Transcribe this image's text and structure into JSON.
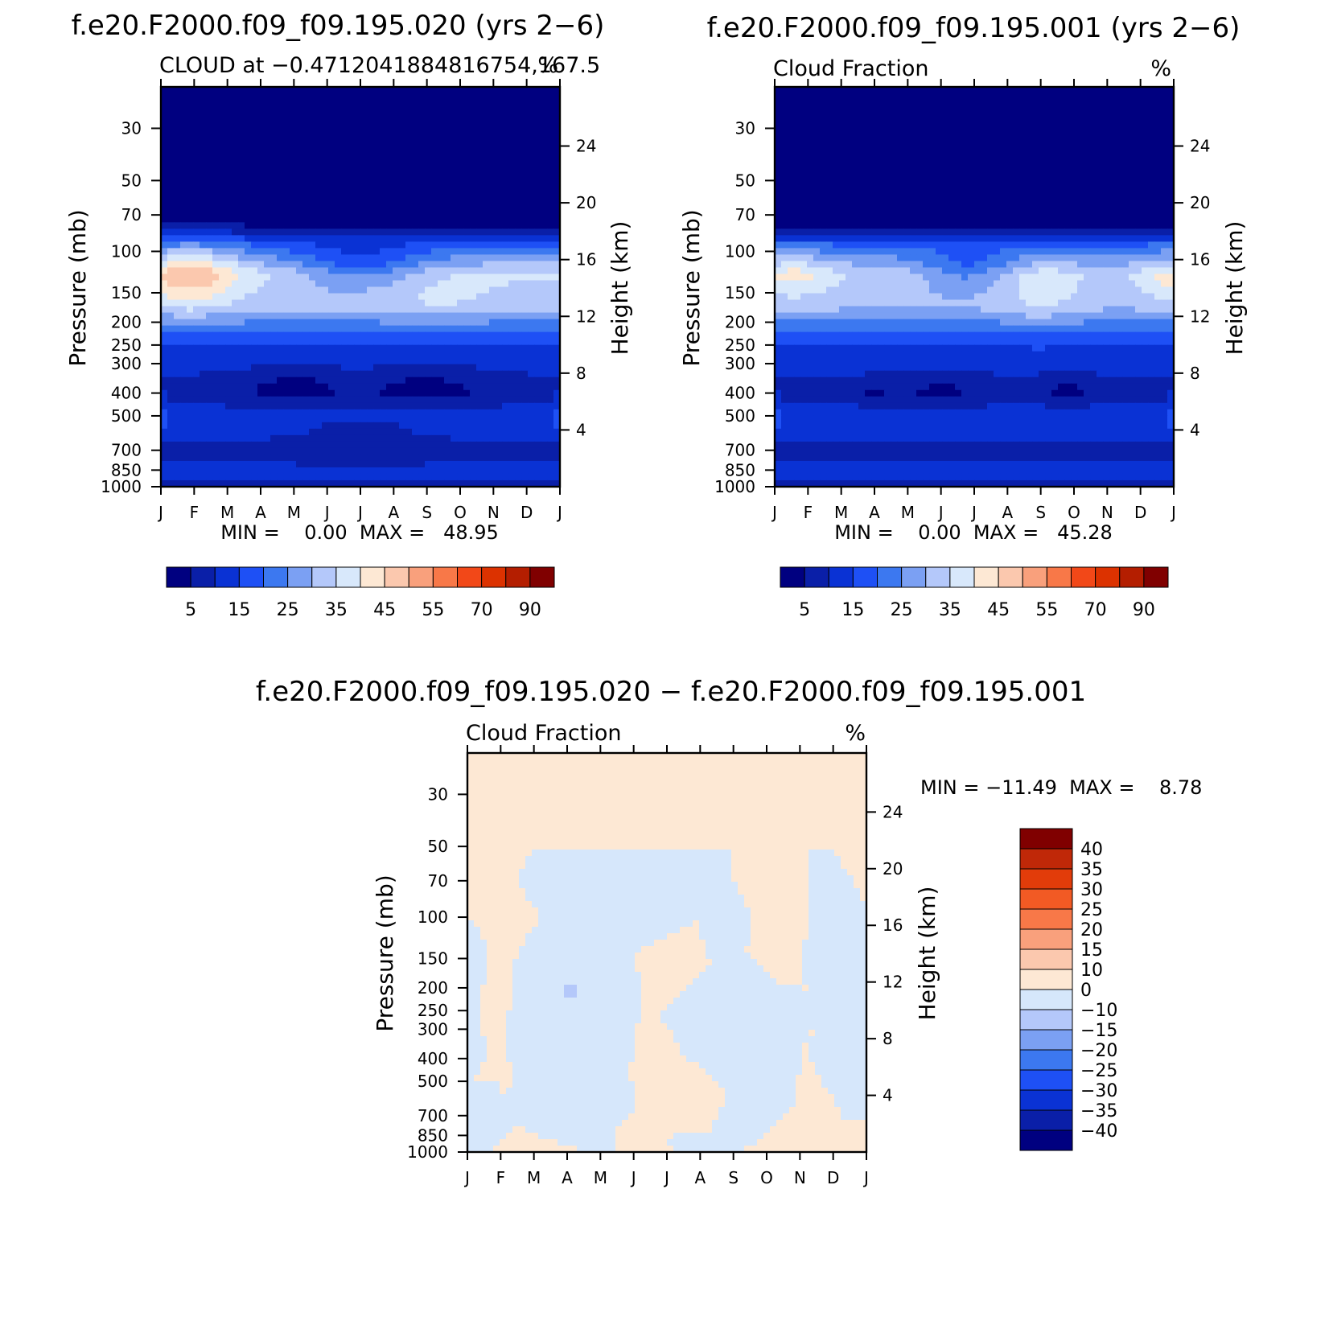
{
  "figure": {
    "colors": {
      "cloud_scale": [
        "#000080",
        "#0a1fa8",
        "#0a32d4",
        "#1e50f5",
        "#3c78f0",
        "#7ba0f3",
        "#b4c8fa",
        "#d8e8fb",
        "#fde8d4",
        "#fbc8ae",
        "#f9a07c",
        "#f87848",
        "#f24818",
        "#dc3200",
        "#b41e00",
        "#800000"
      ],
      "diff_scale": [
        "#000080",
        "#0a1fa8",
        "#0a32d4",
        "#1e50f5",
        "#3c78f0",
        "#7ba0f3",
        "#b4c8fa",
        "#d6e7fb",
        "#fde8d4",
        "#fbc8ae",
        "#f9a07c",
        "#f87848",
        "#f25a24",
        "#e23c0a",
        "#c02808",
        "#800000"
      ]
    }
  },
  "chart_data": [
    {
      "type": "heatmap",
      "id": "panel_left",
      "title": "f.e20.F2000.f09_f09.195.020 (yrs 2−6)",
      "subtitle_left": "CLOUD at −0.4712041884816754,167.5",
      "subtitle_right": "%",
      "xlabel": "",
      "ylabel": "Pressure (mb)",
      "ylabel_right": "Height (km)",
      "x_tick_labels": [
        "J",
        "F",
        "M",
        "A",
        "M",
        "J",
        "J",
        "A",
        "S",
        "O",
        "N",
        "D",
        "J"
      ],
      "y_tick_labels": [
        "30",
        "50",
        "70",
        "100",
        "150",
        "200",
        "250",
        "300",
        "400",
        "500",
        "700",
        "850",
        "1000"
      ],
      "y_tick_values": [
        30,
        50,
        70,
        100,
        150,
        200,
        250,
        300,
        400,
        500,
        700,
        850,
        1000
      ],
      "ylim": [
        20,
        1000
      ],
      "y2_tick_labels": [
        "24",
        "20",
        "16",
        "12",
        "8",
        "4"
      ],
      "y2_tick_values": [
        24,
        20,
        16,
        12,
        8,
        4
      ],
      "minmax_text": "MIN =    0.00  MAX =   48.95",
      "colorbar_labels": [
        "5",
        "15",
        "25",
        "35",
        "45",
        "55",
        "70",
        "90"
      ],
      "levels": [
        5,
        10,
        15,
        20,
        25,
        30,
        35,
        40,
        45,
        50,
        55,
        60,
        70,
        80,
        90
      ],
      "profile": [
        {
          "p": 20,
          "v": 0
        },
        {
          "p": 70,
          "v": 0
        },
        {
          "p": 80,
          "v": 6
        },
        {
          "p": 95,
          "v": 20
        },
        {
          "p": 125,
          "v": 36
        },
        {
          "p": 175,
          "v": 31
        },
        {
          "p": 220,
          "v": 20
        },
        {
          "p": 280,
          "v": 12
        },
        {
          "p": 400,
          "v": 8
        },
        {
          "p": 500,
          "v": 12
        },
        {
          "p": 700,
          "v": 9
        },
        {
          "p": 900,
          "v": 11
        },
        {
          "p": 1000,
          "v": 4
        }
      ],
      "anomalies": [
        {
          "m": 0.9,
          "p": 125,
          "sm": 1.4,
          "sp": 0.32,
          "a": 14
        },
        {
          "m": 4.0,
          "p": 380,
          "sm": 1.5,
          "sp": 0.18,
          "a": -6
        },
        {
          "m": 8.0,
          "p": 380,
          "sm": 1.6,
          "sp": 0.18,
          "a": -6
        },
        {
          "m": 6.0,
          "p": 115,
          "sm": 2.0,
          "sp": 0.25,
          "a": -12
        },
        {
          "m": 8.2,
          "p": 160,
          "sm": 1.8,
          "sp": 0.2,
          "a": 4
        },
        {
          "m": 6.0,
          "p": 620,
          "sm": 1.3,
          "sp": 0.22,
          "a": -3
        }
      ]
    },
    {
      "type": "heatmap",
      "id": "panel_right",
      "title": "f.e20.F2000.f09_f09.195.001 (yrs 2−6)",
      "subtitle_left": "Cloud Fraction",
      "subtitle_right": "%",
      "xlabel": "",
      "ylabel": "Pressure (mb)",
      "ylabel_right": "Height (km)",
      "x_tick_labels": [
        "J",
        "F",
        "M",
        "A",
        "M",
        "J",
        "J",
        "A",
        "S",
        "O",
        "N",
        "D",
        "J"
      ],
      "y_tick_labels": [
        "30",
        "50",
        "70",
        "100",
        "150",
        "200",
        "250",
        "300",
        "400",
        "500",
        "700",
        "850",
        "1000"
      ],
      "y_tick_values": [
        30,
        50,
        70,
        100,
        150,
        200,
        250,
        300,
        400,
        500,
        700,
        850,
        1000
      ],
      "ylim": [
        20,
        1000
      ],
      "y2_tick_labels": [
        "24",
        "20",
        "16",
        "12",
        "8",
        "4"
      ],
      "y2_tick_values": [
        24,
        20,
        16,
        12,
        8,
        4
      ],
      "minmax_text": "MIN =    0.00  MAX =   45.28",
      "colorbar_labels": [
        "5",
        "15",
        "25",
        "35",
        "45",
        "55",
        "70",
        "90"
      ],
      "levels": [
        5,
        10,
        15,
        20,
        25,
        30,
        35,
        40,
        45,
        50,
        55,
        60,
        70,
        80,
        90
      ],
      "profile": [
        {
          "p": 20,
          "v": 0
        },
        {
          "p": 70,
          "v": 0
        },
        {
          "p": 80,
          "v": 6
        },
        {
          "p": 95,
          "v": 20
        },
        {
          "p": 125,
          "v": 34
        },
        {
          "p": 175,
          "v": 30
        },
        {
          "p": 220,
          "v": 20
        },
        {
          "p": 280,
          "v": 12
        },
        {
          "p": 400,
          "v": 8
        },
        {
          "p": 500,
          "v": 12
        },
        {
          "p": 700,
          "v": 9
        },
        {
          "p": 900,
          "v": 11
        },
        {
          "p": 1000,
          "v": 4
        }
      ],
      "anomalies": [
        {
          "m": 0.6,
          "p": 125,
          "sm": 1.2,
          "sp": 0.25,
          "a": 8
        },
        {
          "m": 8.0,
          "p": 150,
          "sm": 1.2,
          "sp": 0.3,
          "a": 6
        },
        {
          "m": 11.8,
          "p": 130,
          "sm": 0.8,
          "sp": 0.25,
          "a": 8
        },
        {
          "m": 5.0,
          "p": 400,
          "sm": 1.0,
          "sp": 0.15,
          "a": -5
        },
        {
          "m": 8.8,
          "p": 390,
          "sm": 0.6,
          "sp": 0.12,
          "a": -6
        },
        {
          "m": 3.0,
          "p": 400,
          "sm": 0.4,
          "sp": 0.1,
          "a": -5
        },
        {
          "m": 5.8,
          "p": 120,
          "sm": 1.4,
          "sp": 0.2,
          "a": -10
        }
      ]
    },
    {
      "type": "heatmap",
      "id": "panel_diff",
      "title": "f.e20.F2000.f09_f09.195.020 − f.e20.F2000.f09_f09.195.001",
      "subtitle_left": "Cloud Fraction",
      "subtitle_right": "%",
      "xlabel": "",
      "ylabel": "Pressure (mb)",
      "ylabel_right": "Height (km)",
      "x_tick_labels": [
        "J",
        "F",
        "M",
        "A",
        "M",
        "J",
        "J",
        "A",
        "S",
        "O",
        "N",
        "D",
        "J"
      ],
      "y_tick_labels": [
        "30",
        "50",
        "70",
        "100",
        "150",
        "200",
        "250",
        "300",
        "400",
        "500",
        "700",
        "850",
        "1000"
      ],
      "y_tick_values": [
        30,
        50,
        70,
        100,
        150,
        200,
        250,
        300,
        400,
        500,
        700,
        850,
        1000
      ],
      "ylim": [
        20,
        1000
      ],
      "y2_tick_labels": [
        "24",
        "20",
        "16",
        "12",
        "8",
        "4"
      ],
      "y2_tick_values": [
        24,
        20,
        16,
        12,
        8,
        4
      ],
      "minmax_text": "MIN = −11.49  MAX =    8.78",
      "colorbar_labels": [
        "40",
        "35",
        "30",
        "25",
        "20",
        "15",
        "10",
        "0",
        "−10",
        "−15",
        "−20",
        "−25",
        "−30",
        "−35",
        "−40"
      ],
      "levels": [
        -40,
        -35,
        -30,
        -25,
        -20,
        -15,
        -10,
        0,
        10,
        15,
        20,
        25,
        30,
        35,
        40
      ],
      "base_value": 3,
      "neg_value": -3,
      "neg_region": [
        {
          "m": 2.0,
          "p": 50
        },
        {
          "m": 8.0,
          "p": 50
        },
        {
          "m": 8.0,
          "p": 70
        },
        {
          "m": 8.6,
          "p": 100
        },
        {
          "m": 8.4,
          "p": 140
        },
        {
          "m": 9.3,
          "p": 190
        },
        {
          "m": 10.6,
          "p": 210
        },
        {
          "m": 10.6,
          "p": 250
        },
        {
          "m": 10.2,
          "p": 330
        },
        {
          "m": 10.0,
          "p": 450
        },
        {
          "m": 9.8,
          "p": 620
        },
        {
          "m": 9.2,
          "p": 800
        },
        {
          "m": 8.8,
          "p": 900
        },
        {
          "m": 8.0,
          "p": 1000
        },
        {
          "m": 4.5,
          "p": 1000
        },
        {
          "m": 4.4,
          "p": 820
        },
        {
          "m": 5.0,
          "p": 650
        },
        {
          "m": 4.9,
          "p": 450
        },
        {
          "m": 5.2,
          "p": 250
        },
        {
          "m": 5.1,
          "p": 140
        },
        {
          "m": 6.9,
          "p": 105
        },
        {
          "m": 7.3,
          "p": 160
        },
        {
          "m": 5.8,
          "p": 260
        },
        {
          "m": 6.5,
          "p": 380
        },
        {
          "m": 7.8,
          "p": 560
        },
        {
          "m": 7.3,
          "p": 800
        },
        {
          "m": 5.8,
          "p": 870
        },
        {
          "m": 6.2,
          "p": 980
        },
        {
          "m": 3.3,
          "p": 980
        },
        {
          "m": 2.0,
          "p": 830
        },
        {
          "m": 1.0,
          "p": 700
        },
        {
          "m": 1.3,
          "p": 500
        },
        {
          "m": 1.2,
          "p": 300
        },
        {
          "m": 1.4,
          "p": 150
        },
        {
          "m": 2.2,
          "p": 100
        },
        {
          "m": 1.5,
          "p": 70
        }
      ],
      "neg_region_left": [
        {
          "m": 0,
          "p": 95
        },
        {
          "m": 0.7,
          "p": 140
        },
        {
          "m": 0.3,
          "p": 260
        },
        {
          "m": 0.6,
          "p": 380
        },
        {
          "m": 0.2,
          "p": 480
        },
        {
          "m": 1.0,
          "p": 520
        },
        {
          "m": 1.4,
          "p": 750
        },
        {
          "m": 0.8,
          "p": 1000
        },
        {
          "m": 0,
          "p": 1000
        }
      ],
      "neg_region_right": [
        {
          "m": 10.2,
          "p": 50
        },
        {
          "m": 11.0,
          "p": 50
        },
        {
          "m": 12,
          "p": 90
        },
        {
          "m": 12,
          "p": 700
        },
        {
          "m": 11.4,
          "p": 760
        },
        {
          "m": 11.0,
          "p": 600
        },
        {
          "m": 10.2,
          "p": 380
        },
        {
          "m": 10.6,
          "p": 240
        },
        {
          "m": 10.0,
          "p": 180
        },
        {
          "m": 10.2,
          "p": 110
        }
      ],
      "blue_spot": {
        "m": 3.05,
        "p": 205,
        "v": -11
      }
    }
  ]
}
